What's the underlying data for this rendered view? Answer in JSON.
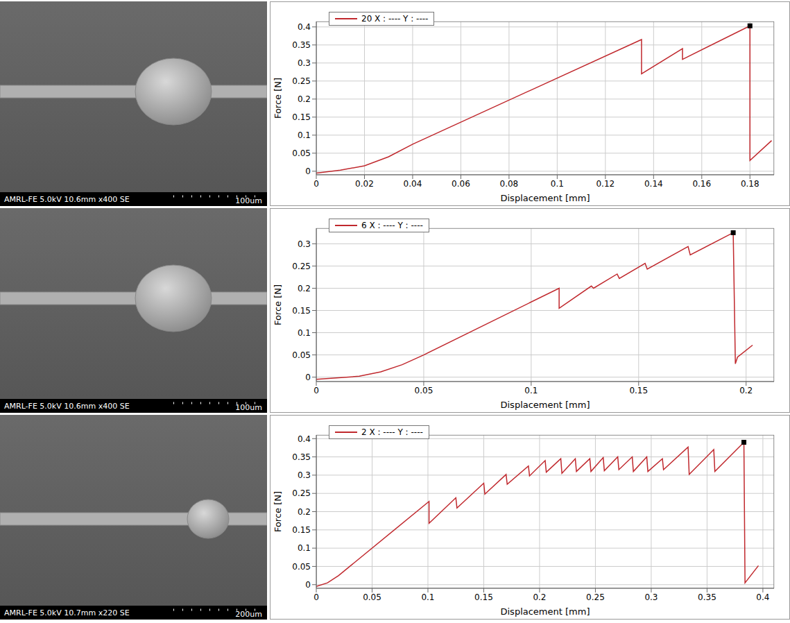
{
  "chart_data": [
    {
      "type": "line",
      "x_label": "Displacement [mm]",
      "y_label": "Force [N]",
      "grid": true,
      "legend": "top-left",
      "xlim": [
        0,
        0.19
      ],
      "xticks": [
        0,
        0.02,
        0.04,
        0.06,
        0.08,
        0.1,
        0.12,
        0.14,
        0.16,
        0.18
      ],
      "ylim": [
        -0.01,
        0.415
      ],
      "yticks": [
        0,
        0.05,
        0.1,
        0.15,
        0.2,
        0.25,
        0.3,
        0.35,
        0.4
      ],
      "series": [
        {
          "name": "20 X : ---- Y : ----",
          "color": "#c0282d",
          "line_style": "solid",
          "x": [
            0,
            0.01,
            0.02,
            0.03,
            0.04,
            0.135,
            0.135,
            0.152,
            0.152,
            0.18,
            0.18,
            0.189
          ],
          "values": [
            -0.005,
            0.003,
            0.015,
            0.04,
            0.075,
            0.365,
            0.27,
            0.34,
            0.31,
            0.403,
            0.03,
            0.085
          ]
        }
      ],
      "annotations": [
        {
          "x": 0.18,
          "y": 0.403,
          "marker": "square",
          "color": "#000000"
        }
      ]
    },
    {
      "type": "line",
      "x_label": "Displacement [mm]",
      "y_label": "Force [N]",
      "grid": true,
      "legend": "top-left",
      "xlim": [
        0,
        0.213
      ],
      "xticks": [
        0,
        0.05,
        0.1,
        0.15,
        0.2
      ],
      "ylim": [
        -0.01,
        0.335
      ],
      "yticks": [
        0,
        0.05,
        0.1,
        0.15,
        0.2,
        0.25,
        0.3
      ],
      "series": [
        {
          "name": "6 X : ---- Y : ----",
          "color": "#c0282d",
          "line_style": "solid",
          "x": [
            0,
            0.02,
            0.03,
            0.04,
            0.05,
            0.113,
            0.113,
            0.128,
            0.129,
            0.14,
            0.141,
            0.153,
            0.154,
            0.173,
            0.174,
            0.194,
            0.195,
            0.196,
            0.203
          ],
          "values": [
            -0.005,
            0.002,
            0.012,
            0.028,
            0.05,
            0.2,
            0.155,
            0.205,
            0.2,
            0.232,
            0.222,
            0.256,
            0.243,
            0.294,
            0.275,
            0.325,
            0.03,
            0.045,
            0.072
          ]
        }
      ],
      "annotations": [
        {
          "x": 0.194,
          "y": 0.325,
          "marker": "square",
          "color": "#000000"
        }
      ]
    },
    {
      "type": "line",
      "x_label": "Displacement [mm]",
      "y_label": "Force [N]",
      "grid": true,
      "legend": "top-left",
      "xlim": [
        0,
        0.41
      ],
      "xticks": [
        0,
        0.05,
        0.1,
        0.15,
        0.2,
        0.25,
        0.3,
        0.35,
        0.4
      ],
      "ylim": [
        -0.01,
        0.41
      ],
      "yticks": [
        0,
        0.05,
        0.1,
        0.15,
        0.2,
        0.25,
        0.3,
        0.35,
        0.4
      ],
      "series": [
        {
          "name": "2 X : ---- Y : ----",
          "color": "#c0282d",
          "line_style": "solid",
          "x": [
            0,
            0.01,
            0.02,
            0.03,
            0.101,
            0.101,
            0.125,
            0.126,
            0.15,
            0.151,
            0.17,
            0.171,
            0.19,
            0.191,
            0.205,
            0.206,
            0.219,
            0.22,
            0.232,
            0.233,
            0.245,
            0.246,
            0.257,
            0.258,
            0.27,
            0.271,
            0.283,
            0.284,
            0.296,
            0.297,
            0.31,
            0.311,
            0.333,
            0.334,
            0.356,
            0.357,
            0.383,
            0.384,
            0.396
          ],
          "values": [
            -0.005,
            0.005,
            0.025,
            0.05,
            0.228,
            0.168,
            0.238,
            0.21,
            0.278,
            0.248,
            0.302,
            0.275,
            0.325,
            0.298,
            0.34,
            0.308,
            0.345,
            0.305,
            0.345,
            0.31,
            0.345,
            0.31,
            0.348,
            0.312,
            0.35,
            0.315,
            0.35,
            0.31,
            0.35,
            0.31,
            0.345,
            0.315,
            0.377,
            0.302,
            0.37,
            0.31,
            0.39,
            0.005,
            0.052
          ]
        }
      ],
      "annotations": [
        {
          "x": 0.383,
          "y": 0.39,
          "marker": "square",
          "color": "#000000"
        }
      ]
    }
  ],
  "images": [
    {
      "caption": "AMRL-FE 5.0kV 10.6mm x400 SE",
      "scale_bar": "100um"
    },
    {
      "caption": "AMRL-FE 5.0kV 10.6mm x400 SE",
      "scale_bar": "100um"
    },
    {
      "caption": "AMRL-FE 5.0kV 10.7mm x220 SE",
      "scale_bar": "200um"
    }
  ]
}
